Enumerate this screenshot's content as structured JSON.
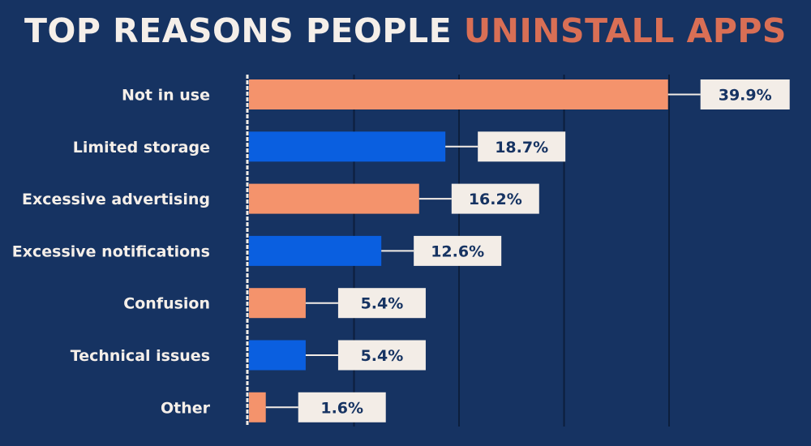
{
  "title": {
    "prefix": "TOP REASONS PEOPLE",
    "accent": "UNINSTALL APPS"
  },
  "colors": {
    "background": "#163362",
    "orange": "#f4936c",
    "blue": "#0a5fe0",
    "label_box": "#f3ede7",
    "title_text": "#f5efe9",
    "title_accent": "#d96f55",
    "grid": "#0c1e3c"
  },
  "chart_data": {
    "type": "bar",
    "orientation": "horizontal",
    "title": "TOP REASONS PEOPLE UNINSTALL APPS",
    "categories": [
      "Not in use",
      "Limited storage",
      "Excessive advertising",
      "Excessive notifications",
      "Confusion",
      "Technical issues",
      "Other"
    ],
    "values": [
      39.9,
      18.7,
      16.2,
      12.6,
      5.4,
      5.4,
      1.6
    ],
    "value_labels": [
      "39.9%",
      "18.7%",
      "16.2%",
      "12.6%",
      "5.4%",
      "5.4%",
      "1.6%"
    ],
    "bar_colors": [
      "orange",
      "blue",
      "orange",
      "blue",
      "orange",
      "blue",
      "orange"
    ],
    "xlim": [
      0,
      40
    ],
    "grid": true,
    "legend": "none"
  }
}
